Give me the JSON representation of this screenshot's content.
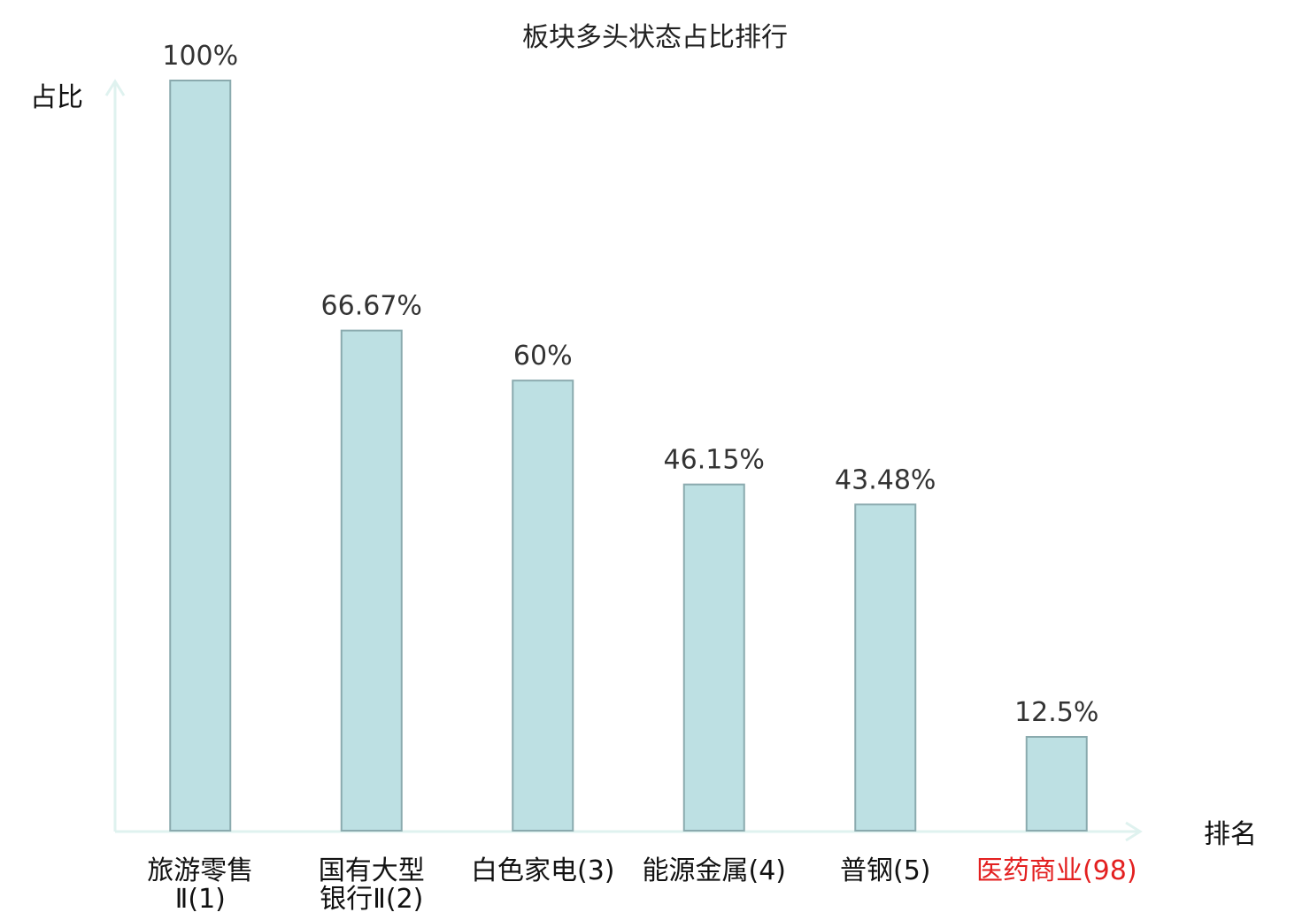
{
  "chart_data": {
    "type": "bar",
    "title": "板块多头状态占比排行",
    "ylabel": "占比",
    "xlabel": "排名",
    "ylim": [
      0,
      100
    ],
    "grid": false,
    "categories": [
      {
        "lines": [
          "旅游零售",
          "Ⅱ(1)"
        ],
        "highlight": false
      },
      {
        "lines": [
          "国有大型",
          "银行Ⅱ(2)"
        ],
        "highlight": false
      },
      {
        "lines": [
          "白色家电(3)"
        ],
        "highlight": false
      },
      {
        "lines": [
          "能源金属(4)"
        ],
        "highlight": false
      },
      {
        "lines": [
          "普钢(5)"
        ],
        "highlight": false
      },
      {
        "lines": [
          "医药商业(98)"
        ],
        "highlight": true
      }
    ],
    "values": [
      100,
      66.67,
      60,
      46.15,
      43.48,
      12.5
    ],
    "value_labels": [
      "100%",
      "66.67%",
      "60%",
      "46.15%",
      "43.48%",
      "12.5%"
    ]
  },
  "colors": {
    "bar_fill": "#bde0e3",
    "bar_stroke": "#8aaaae",
    "axis": "#dff2ef",
    "highlight_text": "#e32020",
    "normal_text": "#111111"
  }
}
